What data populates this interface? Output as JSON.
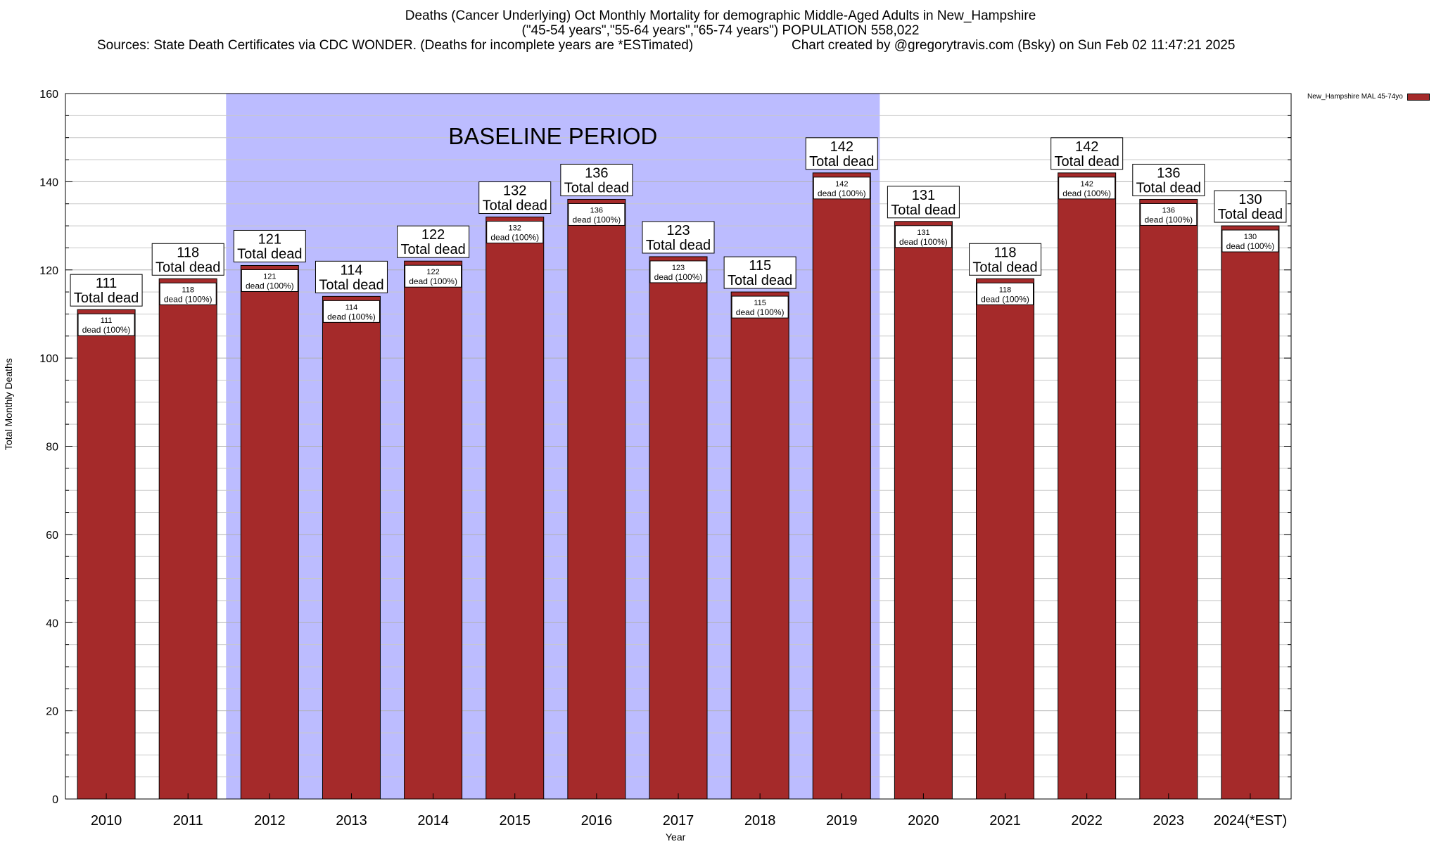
{
  "title": {
    "line1": "Deaths (Cancer Underlying) Oct Monthly Mortality for demographic Middle-Aged Adults in New_Hampshire",
    "line2": "(\"45-54 years\",\"55-64 years\",\"65-74 years\") POPULATION 558,022",
    "line3_left": "Sources: State Death Certificates via CDC WONDER. (Deaths for incomplete years are *ESTimated)",
    "line3_right": "Chart created by @gregorytravis.com (Bsky) on Sun Feb 02 11:47:21 2025"
  },
  "chart_data": {
    "type": "bar",
    "categories": [
      "2010",
      "2011",
      "2012",
      "2013",
      "2014",
      "2015",
      "2016",
      "2017",
      "2018",
      "2019",
      "2020",
      "2021",
      "2022",
      "2023",
      "2024(*EST)"
    ],
    "series": [
      {
        "name": "New_Hampshire MAL 45-74yo",
        "values": [
          111,
          118,
          121,
          114,
          122,
          132,
          136,
          123,
          115,
          142,
          131,
          118,
          142,
          136,
          130
        ],
        "color": "#a52a2a"
      }
    ],
    "xlabel": "Year",
    "ylabel": "Total Monthly Deaths",
    "ylim": [
      0,
      160
    ],
    "yticks": [
      0,
      20,
      40,
      60,
      80,
      100,
      120,
      140,
      160
    ],
    "grid": true,
    "legend_position": "top-right",
    "total_label_text": "Total dead",
    "inner_label_text": "dead (100%)",
    "baseline": {
      "label": "BASELINE PERIOD",
      "start_category": "2012",
      "end_category": "2019",
      "color": "#bcbcff"
    }
  }
}
